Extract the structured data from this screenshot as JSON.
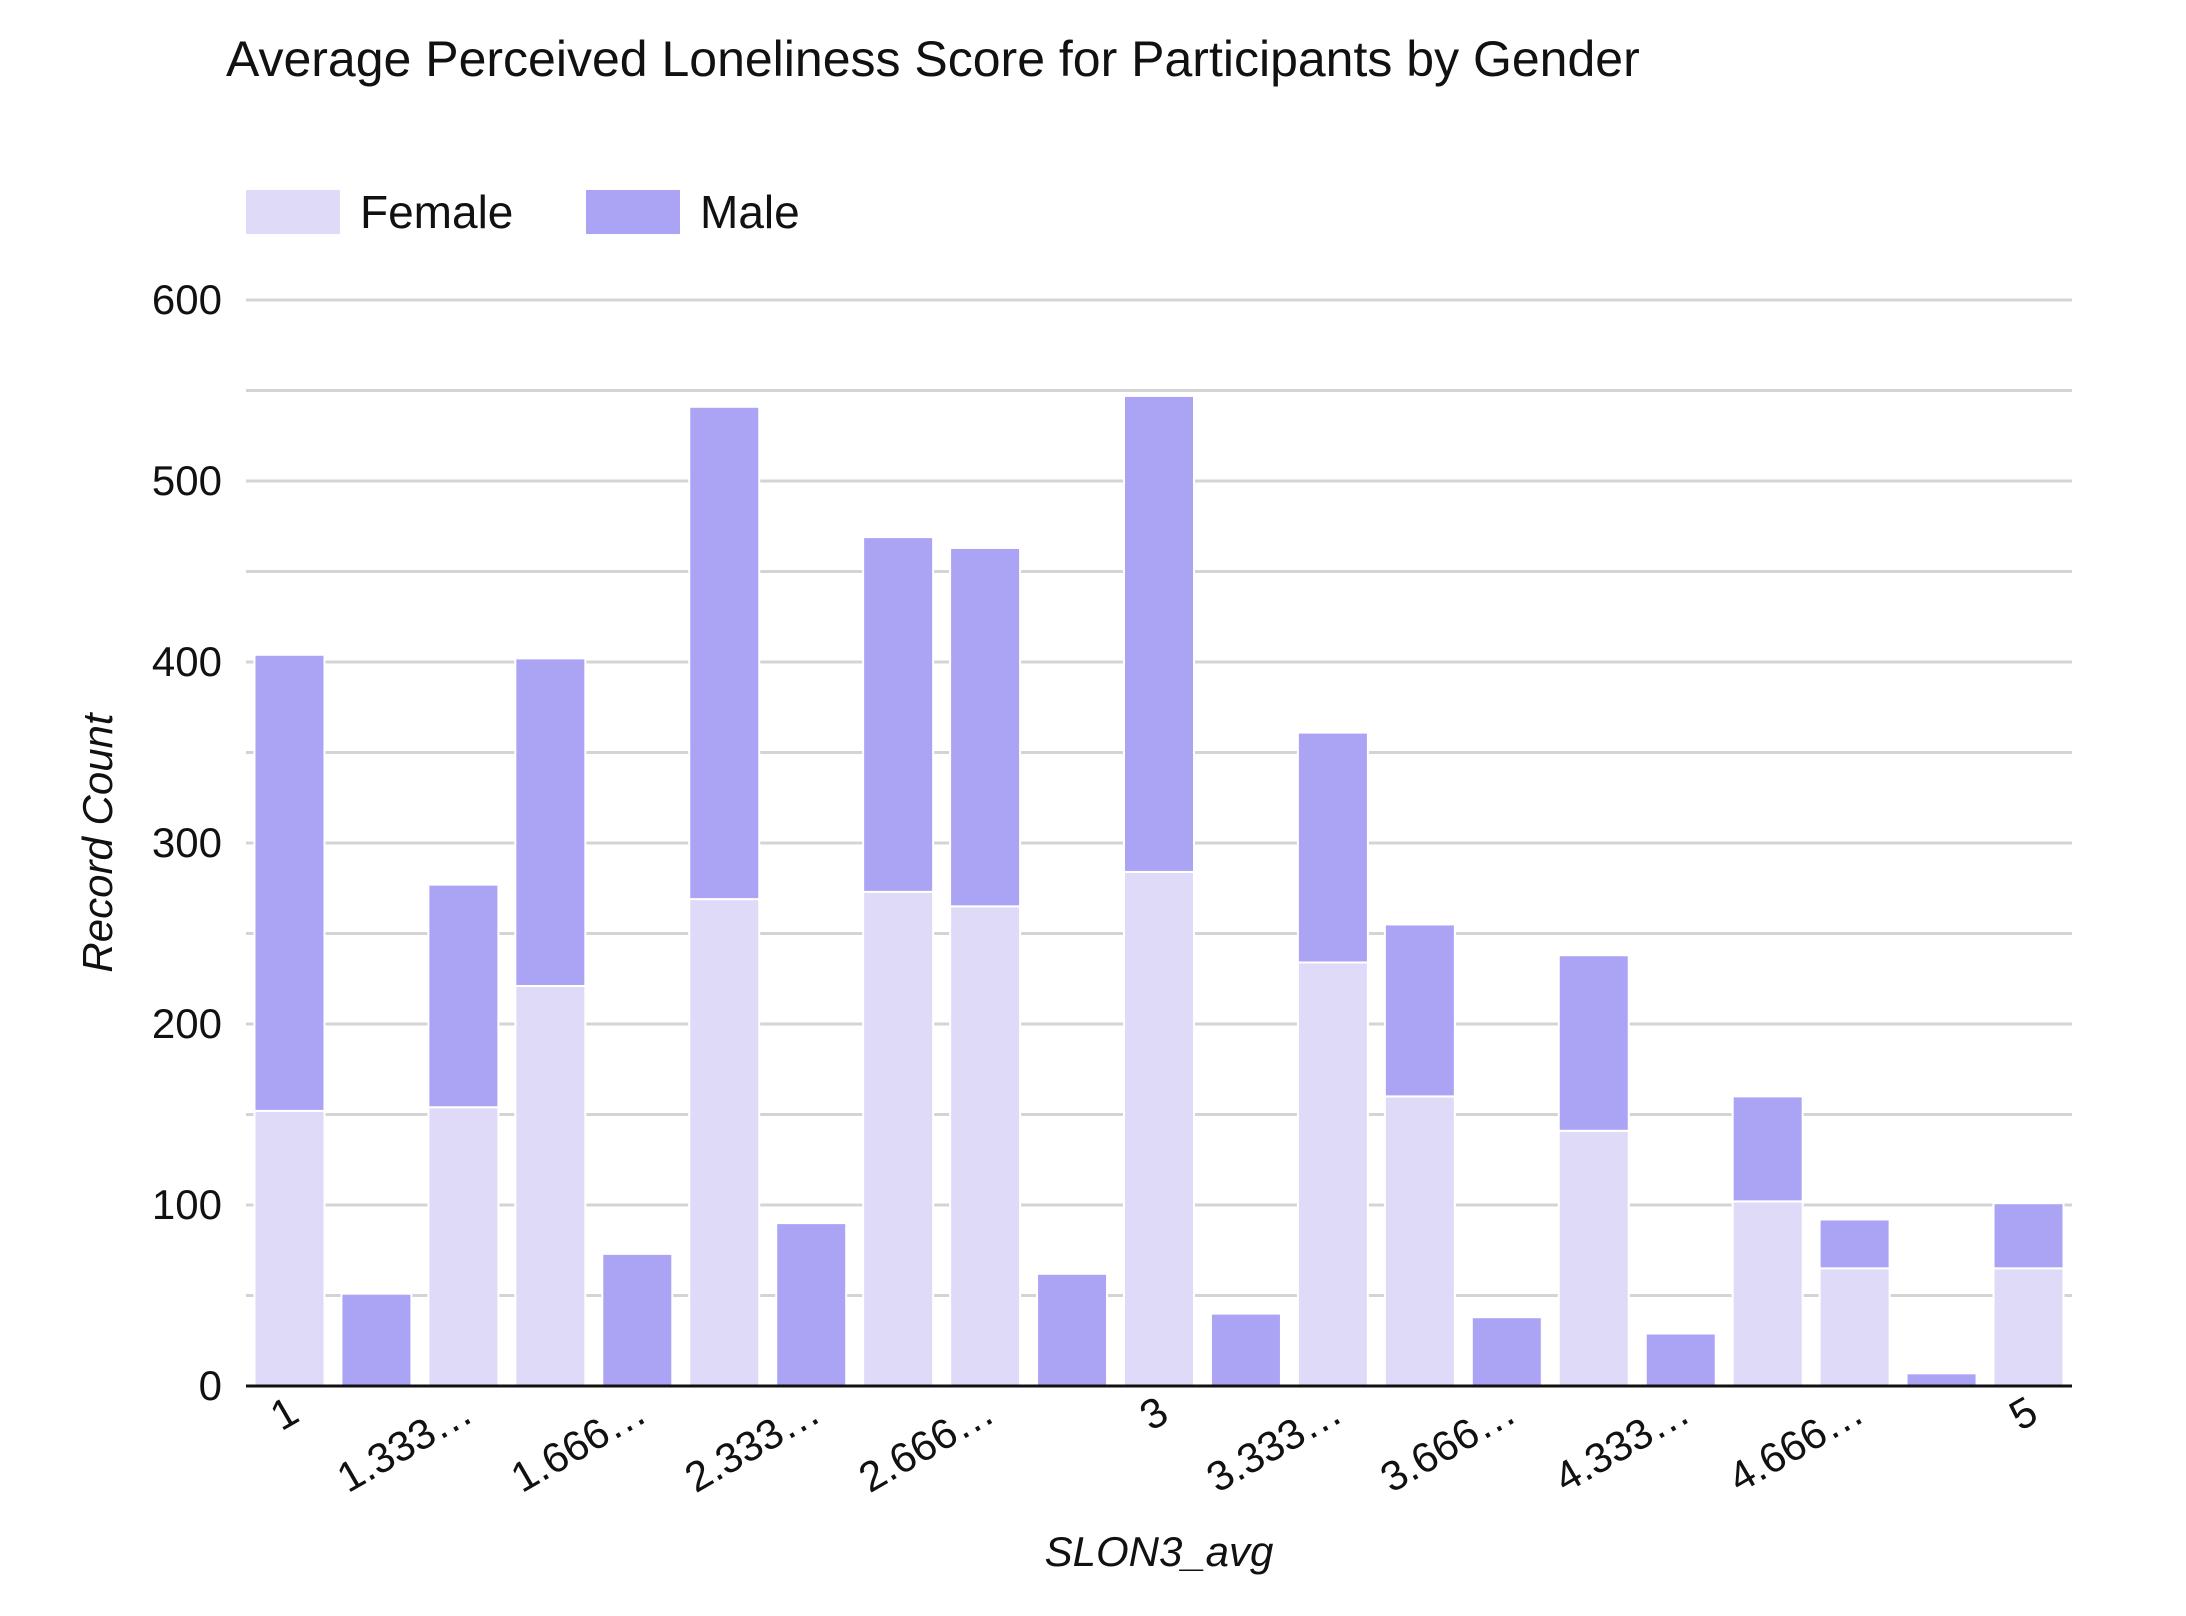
{
  "chart_data": {
    "type": "bar",
    "stacked": true,
    "title": "Average Perceived Loneliness Score for Participants by Gender",
    "xlabel": "SLON3_avg",
    "ylabel": "Record Count",
    "ylim": [
      0,
      600
    ],
    "yticks": [
      0,
      100,
      200,
      300,
      400,
      500,
      600
    ],
    "grid": true,
    "legend_position": "top-left",
    "categories": [
      "1",
      "1.333…",
      "1.333…",
      "1.666…",
      "1.666…",
      "2.333…",
      "2.333…",
      "2.666…",
      "2.666…",
      "3",
      "3",
      "3.333…",
      "3.333…",
      "3.666…",
      "3.666…",
      "4.333…",
      "4.333…",
      "4.666…",
      "4.666…",
      "5",
      "5"
    ],
    "visible_tick_labels": [
      "1",
      "1.333…",
      "1.666…",
      "2.333…",
      "2.666…",
      "3",
      "3.333…",
      "3.666…",
      "4.333…",
      "4.666…",
      "5"
    ],
    "series": [
      {
        "name": "Female",
        "color": "#e0daf9",
        "values": [
          152,
          0,
          154,
          221,
          0,
          269,
          0,
          273,
          265,
          0,
          284,
          0,
          234,
          160,
          0,
          141,
          0,
          102,
          65,
          0,
          65
        ]
      },
      {
        "name": "Male",
        "color": "#aba4f5",
        "values": [
          252,
          51,
          123,
          181,
          73,
          272,
          90,
          196,
          198,
          62,
          263,
          40,
          127,
          95,
          38,
          97,
          29,
          58,
          27,
          7,
          36
        ]
      }
    ]
  }
}
